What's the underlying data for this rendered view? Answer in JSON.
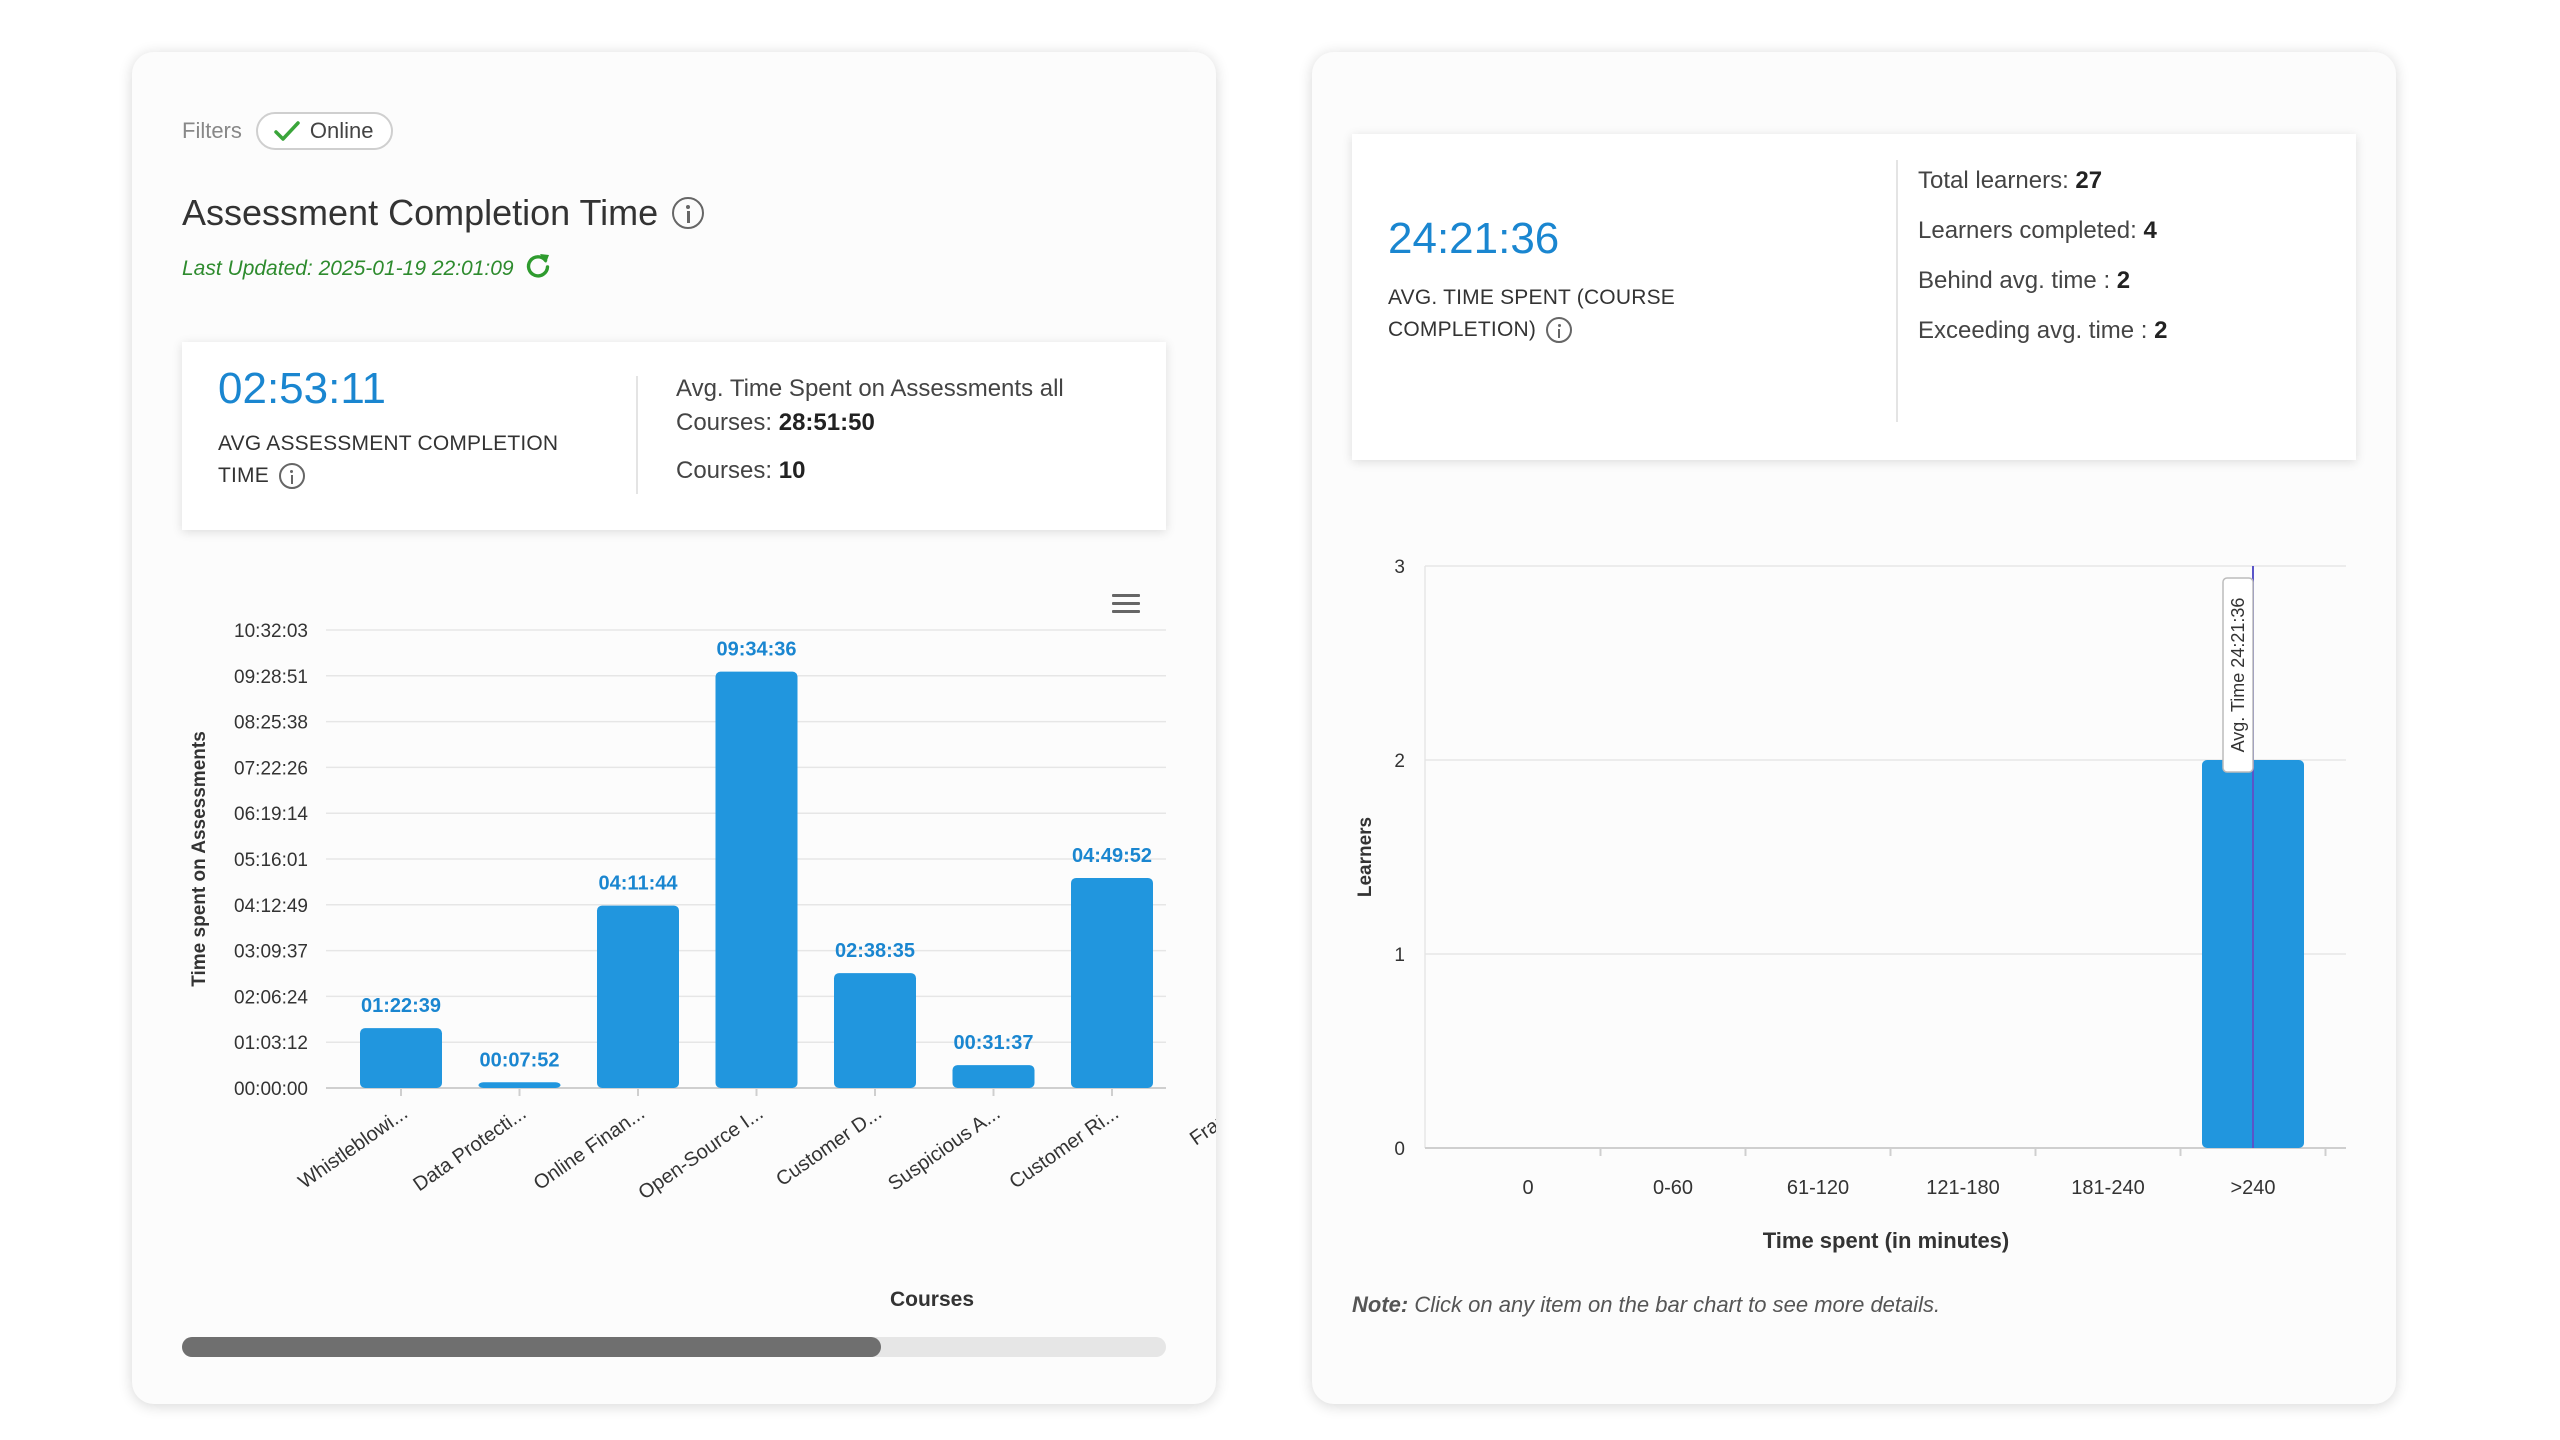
{
  "left": {
    "filters_label": "Filters",
    "filter_chip": "Online",
    "title": "Assessment Completion Time",
    "last_updated": "Last Updated: 2025-01-19 22:01:09",
    "avg_value": "02:53:11",
    "avg_caption_line1": "AVG ASSESSMENT COMPLETION",
    "avg_caption_line2": "TIME",
    "all_courses_label_line1": "Avg. Time Spent on Assessments all",
    "all_courses_label_line2": "Courses:",
    "all_courses_value": "28:51:50",
    "courses_label": "Courses:",
    "courses_value": "10",
    "scroll_position": 0.71
  },
  "right": {
    "avg_value": "24:21:36",
    "avg_caption_line1": "AVG. TIME SPENT (COURSE",
    "avg_caption_line2": "COMPLETION)",
    "stats": [
      {
        "label": "Total learners:",
        "value": "27"
      },
      {
        "label": "Learners completed:",
        "value": "4"
      },
      {
        "label": "Behind avg. time :",
        "value": "2"
      },
      {
        "label": "Exceeding avg. time :",
        "value": "2"
      }
    ],
    "note_label": "Note:",
    "note_text": "Click on any item on the bar chart to see more details."
  },
  "colors": {
    "bar": "#2196de",
    "accent": "#1a86d0",
    "green": "#2e8b2e",
    "avg_line": "#5a55c8"
  },
  "chart_data": [
    {
      "type": "bar",
      "xlabel": "Courses",
      "ylabel": "Time spent on Assessments",
      "y_ticks": [
        "00:00:00",
        "01:03:12",
        "02:06:24",
        "03:09:37",
        "04:12:49",
        "05:16:01",
        "06:19:14",
        "07:22:26",
        "08:25:38",
        "09:28:51",
        "10:32:03"
      ],
      "ylim_seconds": [
        0,
        37923
      ],
      "categories": [
        "Whistleblowi...",
        "Data Protecti...",
        "Online Finan...",
        "Open-Source I...",
        "Customer D...",
        "Suspicious A...",
        "Customer Ri...",
        "Fraud"
      ],
      "values": [
        4959,
        472,
        15104,
        34476,
        9515,
        1897,
        17392,
        null
      ],
      "labels": [
        "01:22:39",
        "00:07:52",
        "04:11:44",
        "09:34:36",
        "02:38:35",
        "00:31:37",
        "04:49:52",
        ""
      ],
      "grid": true,
      "legend": "none"
    },
    {
      "type": "bar",
      "xlabel": "Time spent (in minutes)",
      "ylabel": "Learners",
      "categories": [
        "0",
        "0-60",
        "61-120",
        "121-180",
        "181-240",
        ">240"
      ],
      "values": [
        0,
        0,
        0,
        0,
        0,
        2
      ],
      "ylim": [
        0,
        3
      ],
      "y_ticks": [
        "0",
        "1",
        "2",
        "3"
      ],
      "annotation": {
        "category": ">240",
        "label": "Avg. Time 24:21:36"
      },
      "grid": true,
      "legend": "none"
    }
  ]
}
